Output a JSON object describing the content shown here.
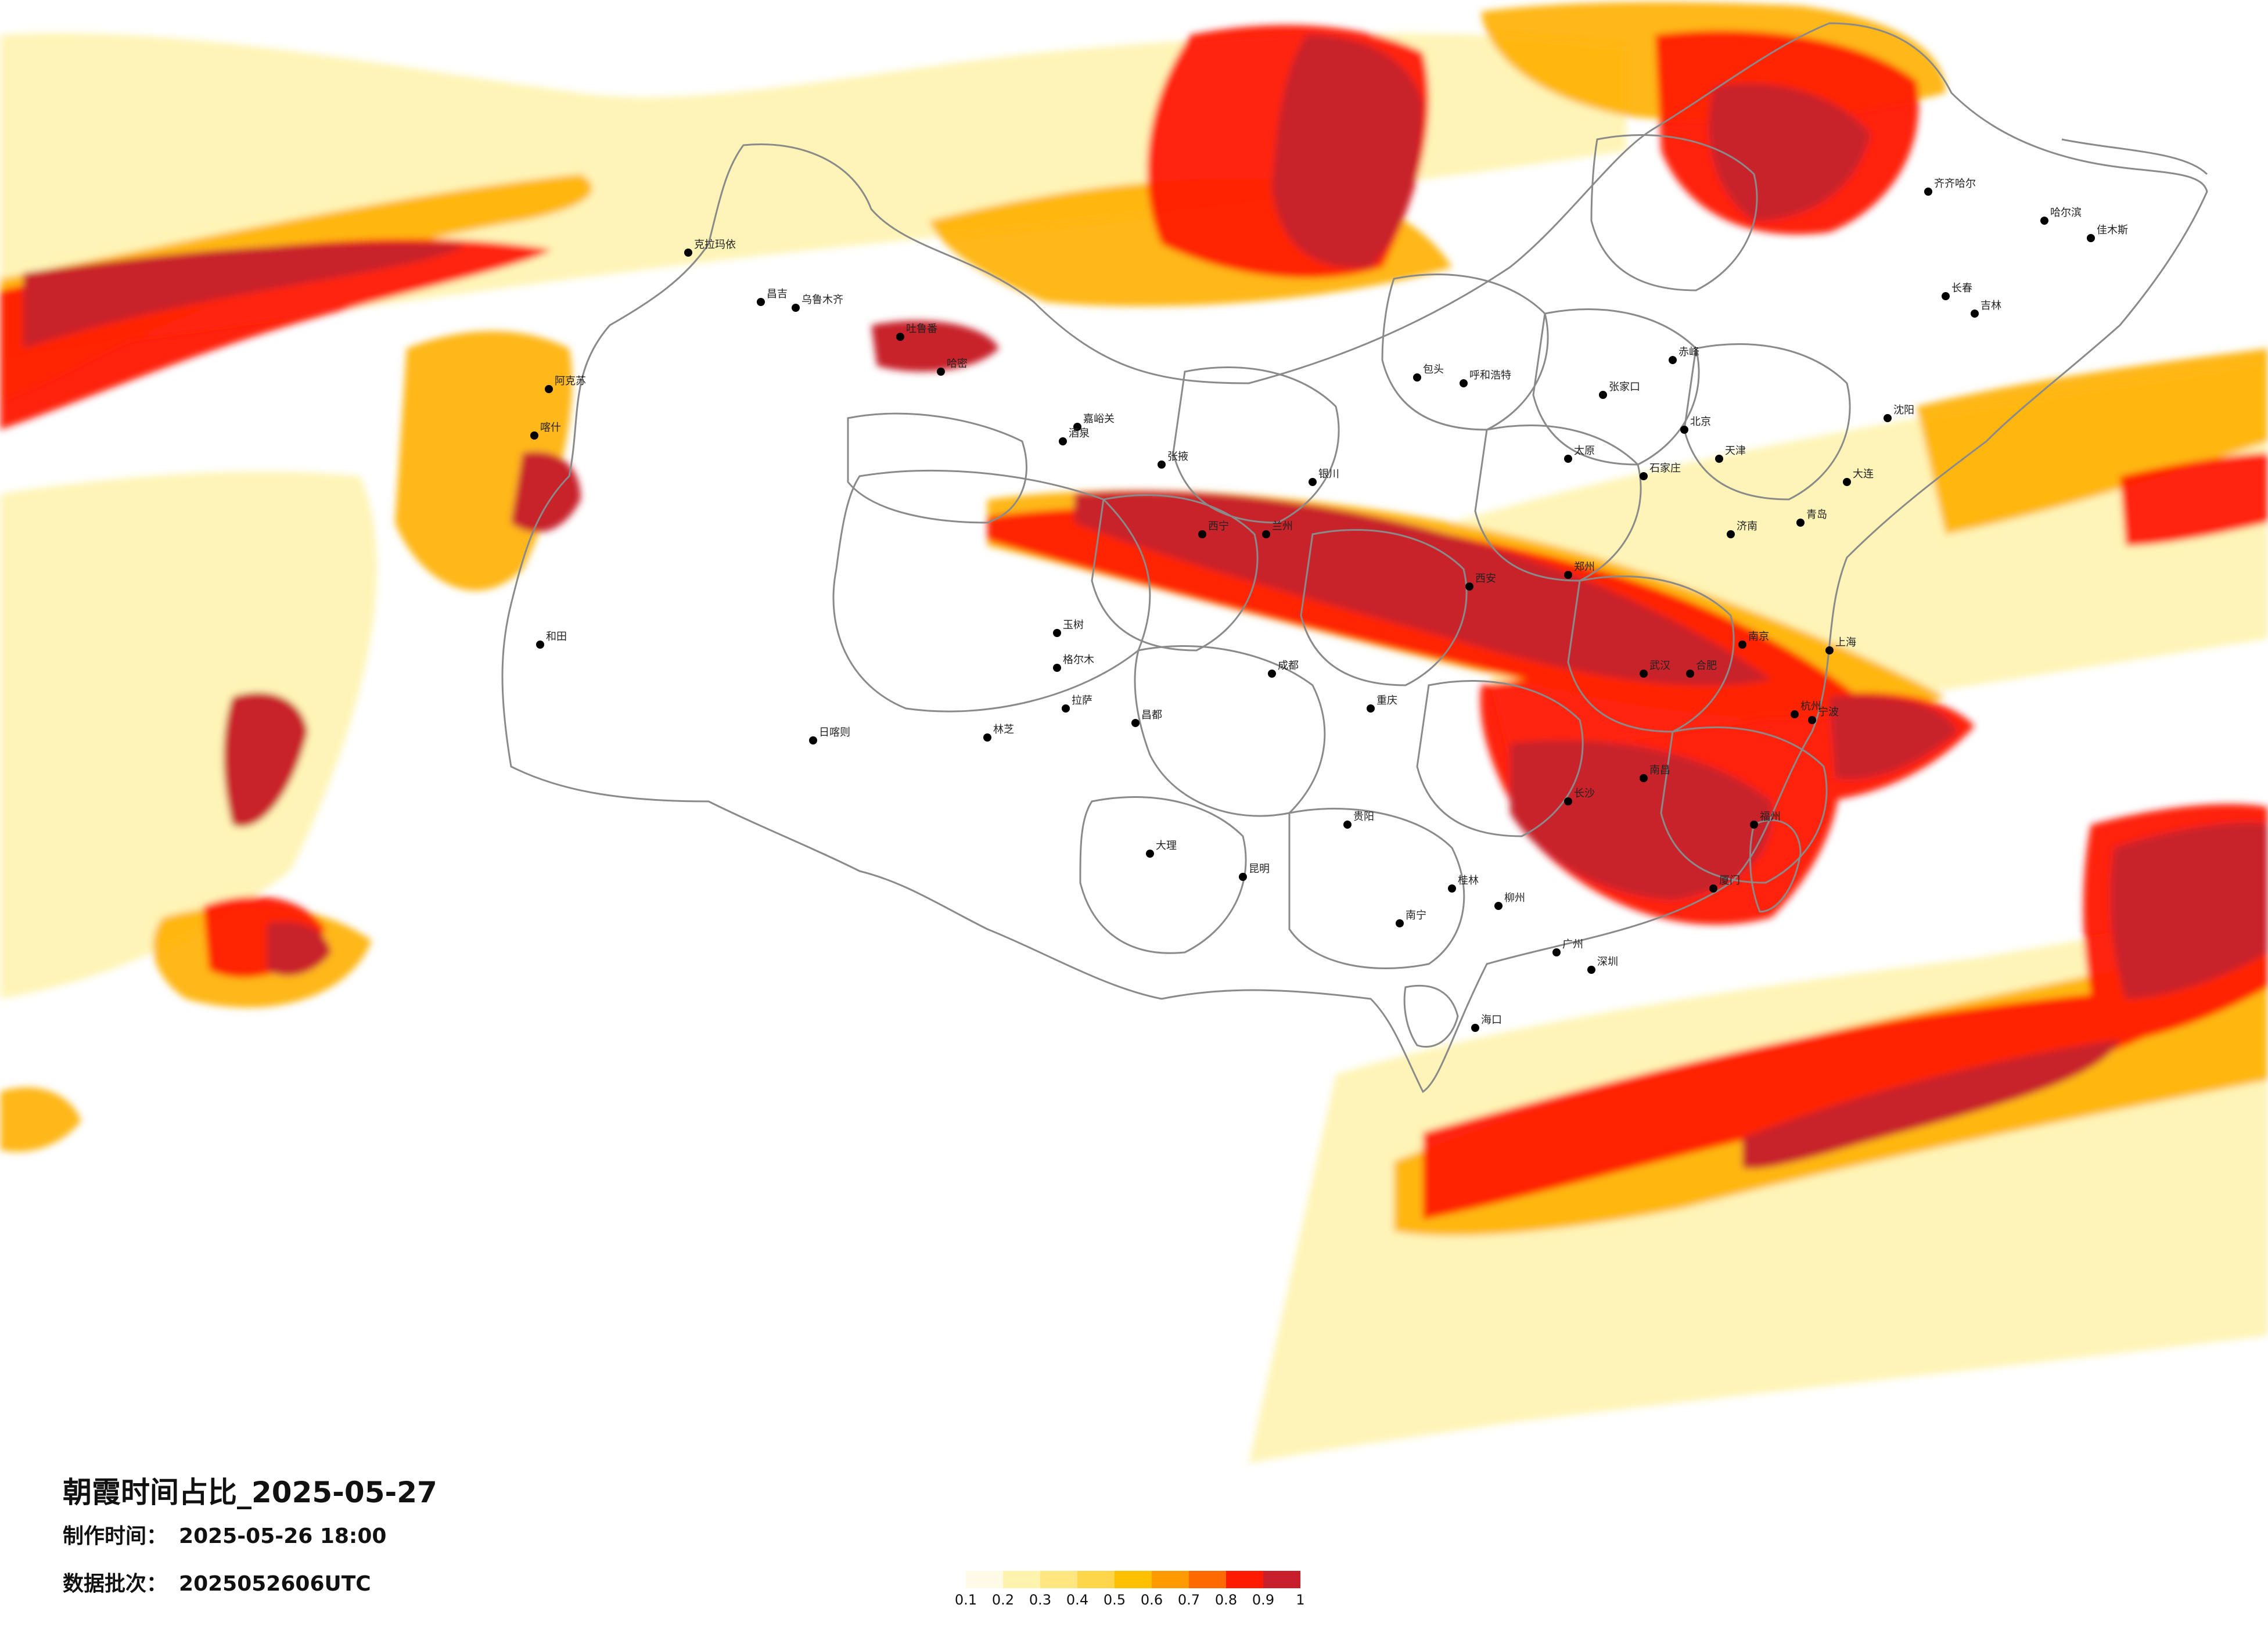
{
  "title": "朝霞时间占比_2025-05-27",
  "production_time": {
    "label": "制作时间：",
    "value": "2025-05-26 18:00"
  },
  "data_batch": {
    "label": "数据批次：",
    "value": "2025052606UTC"
  },
  "legend": {
    "colors": [
      "#fffbe6",
      "#fff3b0",
      "#ffe680",
      "#ffd54a",
      "#ffc000",
      "#ff9a00",
      "#ff6a00",
      "#ff1a00",
      "#c8202a"
    ],
    "ticks": [
      "0.1",
      "0.2",
      "0.3",
      "0.4",
      "0.5",
      "0.6",
      "0.7",
      "0.8",
      "0.9",
      "1"
    ]
  },
  "cities": [
    {
      "name": "克拉玛依"
    },
    {
      "name": "昌吉"
    },
    {
      "name": "乌鲁木齐"
    },
    {
      "name": "吐鲁番"
    },
    {
      "name": "哈密"
    },
    {
      "name": "阿克苏"
    },
    {
      "name": "喀什"
    },
    {
      "name": "和田"
    },
    {
      "name": "嘉峪关"
    },
    {
      "name": "酒泉"
    },
    {
      "name": "张掖"
    },
    {
      "name": "西宁"
    },
    {
      "name": "格尔木"
    },
    {
      "name": "拉萨"
    },
    {
      "name": "日喀则"
    },
    {
      "name": "林芝"
    },
    {
      "name": "昌都"
    },
    {
      "name": "玉树"
    },
    {
      "name": "银川"
    },
    {
      "name": "兰州"
    },
    {
      "name": "成都"
    },
    {
      "name": "重庆"
    },
    {
      "name": "贵阳"
    },
    {
      "name": "昆明"
    },
    {
      "name": "大理"
    },
    {
      "name": "南宁"
    },
    {
      "name": "桂林"
    },
    {
      "name": "柳州"
    },
    {
      "name": "广州"
    },
    {
      "name": "深圳"
    },
    {
      "name": "海口"
    },
    {
      "name": "长沙"
    },
    {
      "name": "南昌"
    },
    {
      "name": "武汉"
    },
    {
      "name": "郑州"
    },
    {
      "name": "西安"
    },
    {
      "name": "太原"
    },
    {
      "name": "石家庄"
    },
    {
      "name": "北京"
    },
    {
      "name": "天津"
    },
    {
      "name": "济南"
    },
    {
      "name": "青岛"
    },
    {
      "name": "南京"
    },
    {
      "name": "上海"
    },
    {
      "name": "杭州"
    },
    {
      "name": "福州"
    },
    {
      "name": "厦门"
    },
    {
      "name": "合肥"
    },
    {
      "name": "沈阳"
    },
    {
      "name": "大连"
    },
    {
      "name": "长春"
    },
    {
      "name": "吉林"
    },
    {
      "name": "哈尔滨"
    },
    {
      "name": "齐齐哈尔"
    },
    {
      "name": "佳木斯"
    },
    {
      "name": "呼和浩特"
    },
    {
      "name": "包头"
    },
    {
      "name": "赤峰"
    },
    {
      "name": "张家口"
    },
    {
      "name": "宁波"
    }
  ]
}
